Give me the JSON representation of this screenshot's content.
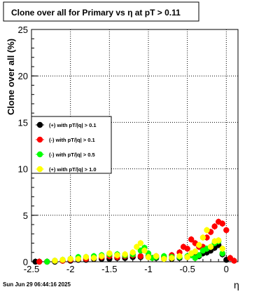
{
  "chart_data": {
    "type": "scatter",
    "title": "Clone  over all for Primary vs   η  at pT > 0.11",
    "xlabel": "η",
    "ylabel": "Clone  over all (%)",
    "xlim": [
      -2.5,
      0.15
    ],
    "ylim": [
      0,
      25
    ],
    "x_ticks": [
      "-2.5",
      "-2",
      "-1.5",
      "-1",
      "-0.5",
      "0"
    ],
    "y_ticks": [
      "0",
      "5",
      "10",
      "15",
      "20",
      "25"
    ],
    "grid": true,
    "legend_position": "middle-left",
    "timestamp": "Sun Jun 29 06:44:16 2025",
    "series": [
      {
        "name": "(+) with pT/|q| > 0.1",
        "color": "#000000",
        "x": [
          -2.45,
          -2.4,
          -2.3,
          -2.2,
          -2.1,
          -2.0,
          -1.9,
          -1.8,
          -1.7,
          -1.6,
          -1.5,
          -1.4,
          -1.3,
          -1.2,
          -1.1,
          -1.0,
          -0.9,
          -0.8,
          -0.7,
          -0.6,
          -0.5,
          -0.4,
          -0.35,
          -0.3,
          -0.25,
          -0.2,
          -0.15,
          -0.1,
          -0.05,
          0.0
        ],
        "y": [
          0.0,
          0.0,
          0.0,
          0.0,
          0.1,
          0.1,
          0.2,
          0.2,
          0.3,
          0.3,
          0.3,
          0.4,
          0.4,
          0.5,
          0.5,
          0.6,
          0.4,
          0.3,
          0.3,
          0.4,
          0.5,
          0.6,
          0.6,
          0.9,
          1.0,
          1.2,
          1.5,
          1.8,
          0.8,
          0.2
        ]
      },
      {
        "name": "(-) with pT/|q| > 0.1",
        "color": "#ff0000",
        "x": [
          -2.4,
          -2.3,
          -2.2,
          -2.1,
          -2.0,
          -1.9,
          -1.8,
          -1.7,
          -1.6,
          -1.5,
          -1.4,
          -1.3,
          -1.2,
          -1.1,
          -1.0,
          -0.95,
          -0.9,
          -0.8,
          -0.7,
          -0.6,
          -0.55,
          -0.5,
          -0.45,
          -0.4,
          -0.35,
          -0.3,
          -0.25,
          -0.2,
          -0.15,
          -0.1,
          -0.05,
          0.0,
          0.05,
          0.1
        ],
        "y": [
          0.0,
          0.0,
          0.1,
          0.1,
          0.2,
          0.3,
          0.3,
          0.4,
          0.5,
          0.6,
          0.5,
          0.6,
          0.7,
          0.6,
          0.5,
          0.4,
          0.6,
          0.5,
          0.7,
          1.0,
          1.6,
          1.4,
          2.4,
          2.0,
          1.6,
          1.6,
          2.6,
          3.2,
          3.8,
          4.3,
          4.1,
          3.4,
          0.4,
          0.1
        ]
      },
      {
        "name": "(-) with pT/|q| > 0.5",
        "color": "#00ff00",
        "x": [
          -2.3,
          -2.2,
          -2.1,
          -2.0,
          -1.9,
          -1.8,
          -1.7,
          -1.6,
          -1.5,
          -1.4,
          -1.3,
          -1.2,
          -1.1,
          -1.05,
          -1.0,
          -0.95,
          -0.9,
          -0.8,
          -0.7,
          -0.6,
          -0.5,
          -0.45,
          -0.4,
          -0.35,
          -0.3,
          -0.25,
          -0.2,
          -0.15,
          -0.1,
          -0.05
        ],
        "y": [
          0.0,
          0.1,
          0.2,
          0.3,
          0.5,
          0.5,
          0.6,
          0.7,
          0.8,
          0.8,
          0.7,
          0.8,
          1.2,
          1.5,
          0.9,
          0.4,
          0.5,
          0.6,
          0.5,
          0.5,
          0.6,
          0.7,
          0.4,
          0.7,
          1.2,
          1.4,
          1.6,
          2.0,
          2.2,
          0.9
        ]
      },
      {
        "name": "(+) with pT/|q| > 1.0",
        "color": "#ffff00",
        "x": [
          -2.2,
          -2.1,
          -2.0,
          -1.9,
          -1.8,
          -1.7,
          -1.6,
          -1.5,
          -1.4,
          -1.3,
          -1.2,
          -1.15,
          -1.1,
          -1.05,
          -1.0,
          -0.9,
          -0.8,
          -0.7,
          -0.6,
          -0.5,
          -0.45,
          -0.4,
          -0.35,
          -0.3,
          -0.25,
          -0.2,
          -0.15,
          -0.1,
          -0.05
        ],
        "y": [
          0.1,
          0.2,
          0.3,
          0.3,
          0.5,
          0.4,
          0.6,
          0.9,
          0.7,
          0.8,
          1.0,
          1.6,
          2.0,
          1.2,
          0.5,
          0.6,
          0.3,
          0.4,
          0.6,
          0.5,
          0.9,
          1.1,
          1.8,
          2.6,
          3.4,
          1.6,
          2.2,
          2.3,
          1.4
        ]
      }
    ]
  }
}
